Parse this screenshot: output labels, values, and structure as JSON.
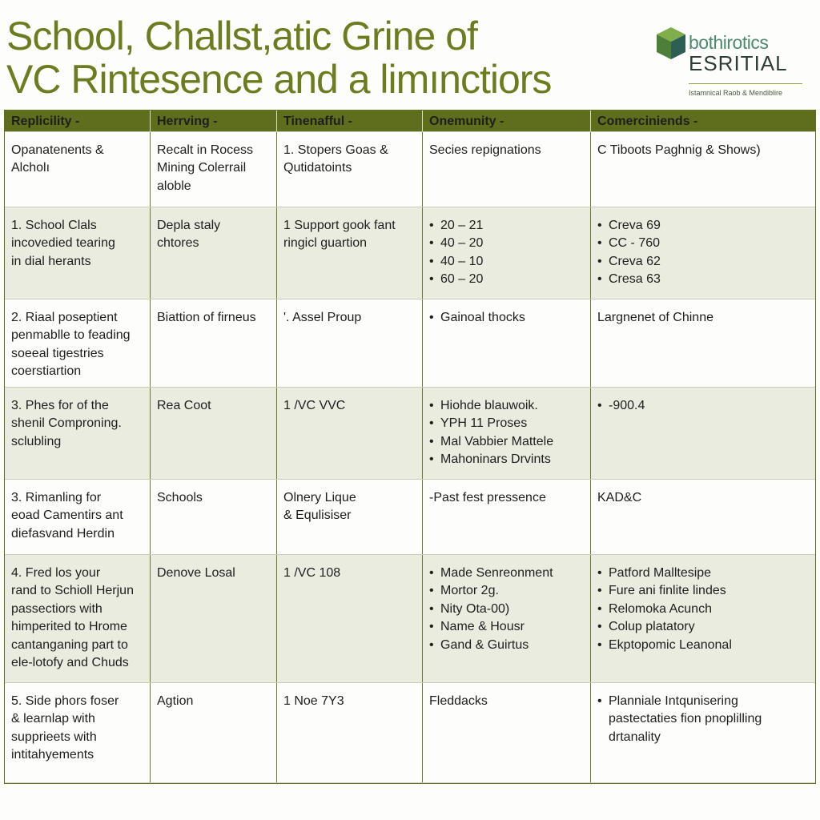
{
  "header": {
    "title": [
      "School, Challst,atic Grine of",
      "VC Rintesence and a limınctiors"
    ],
    "logo": {
      "name": "bothirotics",
      "subname": "ESRITIAL",
      "tagline": "Istamnical Raob & Mendiblire"
    }
  },
  "table": {
    "columns": [
      "Replicility -",
      "Herrving -",
      "Tinenafful -",
      "Onemunity -",
      "Comerciniends -"
    ],
    "rows": [
      [
        {
          "lines": [
            "Opanatenents &",
            "Alcholı"
          ]
        },
        {
          "lines": [
            "Recalt in Rocess",
            "Mining Colerrail",
            "aloble"
          ]
        },
        {
          "lines": [
            "1. Stopers Goas &",
            "Qutidatoints"
          ]
        },
        {
          "lines": [
            "Secies repignations"
          ]
        },
        {
          "lines": [
            "C Tiboots Paghnig & Shows)"
          ]
        }
      ],
      [
        {
          "lines": [
            "1. School Clals",
            "incovedied tearing",
            "in dial herants"
          ]
        },
        {
          "lines": [
            "Depla staly",
            "chtores"
          ]
        },
        {
          "lines": [
            "1 Support gook fant",
            "ringicl guartion"
          ]
        },
        {
          "items": [
            [
              "20 – 21"
            ],
            [
              "40 – 20"
            ],
            [
              "40 – 10"
            ],
            [
              "60 – 20"
            ]
          ]
        },
        {
          "items": [
            [
              "Creva 69"
            ],
            [
              "CC - 760"
            ],
            [
              "Creva 62"
            ],
            [
              "Cresa 63"
            ]
          ]
        }
      ],
      [
        {
          "lines": [
            "2. Riaal poseptient",
            "penmablle to feading",
            "soeeal tigestries",
            "coerstiartion"
          ]
        },
        {
          "lines": [
            "Biattion of firneus"
          ]
        },
        {
          "lines": [
            "'. Assel Proup"
          ]
        },
        {
          "items": [
            [
              "Gainoal thocks"
            ]
          ]
        },
        {
          "lines": [
            "Largnenet of Chinne"
          ]
        }
      ],
      [
        {
          "lines": [
            "3. Phes for of the",
            "shenil Comproning.",
            "sclubling"
          ]
        },
        {
          "lines": [
            "Rea Coot"
          ]
        },
        {
          "lines": [
            "1 /VC VVC"
          ]
        },
        {
          "items": [
            [
              "Hiohde blauwoik."
            ],
            [
              "YPH 11 Proses"
            ],
            [
              "Mal Vabbier Mattele"
            ],
            [
              "Mahoninars Drvints"
            ]
          ]
        },
        {
          "items": [
            [
              "-900.4"
            ]
          ]
        }
      ],
      [
        {
          "lines": [
            "3. Rimanling for",
            "eoad Camentirs ant",
            "diefasvand Herdin"
          ]
        },
        {
          "lines": [
            "Schools"
          ]
        },
        {
          "lines": [
            "Olnery Lique",
            "& Equlisiser"
          ]
        },
        {
          "lines": [
            "-Past fest pressence"
          ]
        },
        {
          "lines": [
            "KAD&C"
          ]
        }
      ],
      [
        {
          "lines": [
            "4. Fred los your",
            "rand to Schioll Herjun",
            "passectiors with",
            "himperited to Hrome",
            "cantanganing part to",
            "ele-lotofy and Chuds"
          ]
        },
        {
          "lines": [
            "Denove Losal"
          ]
        },
        {
          "lines": [
            "1 /VC 108"
          ]
        },
        {
          "items": [
            [
              "Made Senreonment"
            ],
            [
              "Mortor 2g."
            ],
            [
              "Nity Ota-00)"
            ],
            [
              "Name & Housr"
            ],
            [
              "Gand & Guirtus"
            ]
          ]
        },
        {
          "items": [
            [
              "Patford Malltesipe"
            ],
            [
              "Fure ani finlite lindes"
            ],
            [
              "Relomoka Acunch"
            ],
            [
              "Colup platatory"
            ],
            [
              "Ekptopomic Leanonal"
            ]
          ]
        }
      ],
      [
        {
          "lines": [
            "5. Side phors foser",
            "& learnlap with",
            "supprieets with",
            "intitahyements"
          ]
        },
        {
          "lines": [
            "Agtion"
          ]
        },
        {
          "lines": [
            "1 Noe 7Y3"
          ]
        },
        {
          "lines": [
            "Fleddacks"
          ]
        },
        {
          "items": [
            [
              "Planniale Intqunisering",
              "pastectaties fion pnoplilling",
              "drtanality"
            ]
          ]
        }
      ]
    ]
  }
}
